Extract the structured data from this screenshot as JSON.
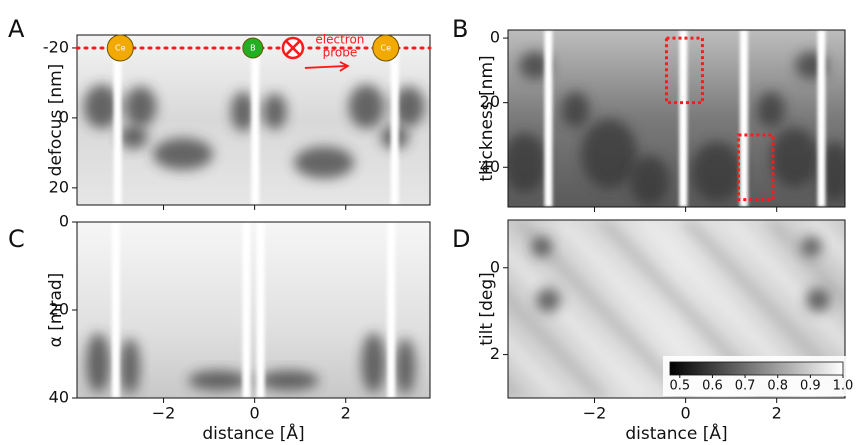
{
  "chart_data": [
    {
      "type": "heatmap",
      "panel_label": "A",
      "ylabel": "defocus [nm]",
      "xlim": [
        -3.9,
        3.85
      ],
      "ylim": [
        -23.7,
        24.9
      ],
      "y_inverted": true,
      "xticks": [
        -2,
        0,
        2
      ],
      "xticklabels": false,
      "yticks": [
        -20,
        0,
        20
      ],
      "reference_line": {
        "y": -20,
        "color": "#ff1a1a"
      },
      "atoms": [
        {
          "label": "Ce",
          "x": -2.95,
          "color": "#f2a900"
        },
        {
          "label": "B",
          "x": -0.04,
          "color": "#22b022"
        },
        {
          "label": "Ce",
          "x": 2.88,
          "color": "#f2a900"
        }
      ],
      "probe": {
        "x": 0.84,
        "label": [
          "electron",
          "probe"
        ],
        "color": "#ff1a1a"
      }
    },
    {
      "type": "heatmap",
      "panel_label": "B",
      "ylabel": "thickness [nm]",
      "xlim": [
        -3.9,
        3.5
      ],
      "ylim": [
        -2.5,
        52.3
      ],
      "y_inverted": true,
      "xticks": [
        -2,
        0,
        2
      ],
      "xticklabels": false,
      "yticks": [
        0,
        20,
        40
      ],
      "highlight_boxes": [
        {
          "x": [
            -0.42,
            0.37
          ],
          "y": [
            0,
            20
          ]
        },
        {
          "x": [
            1.16,
            1.92
          ],
          "y": [
            30,
            50
          ]
        }
      ],
      "box_color": "#ff1a1a"
    },
    {
      "type": "heatmap",
      "panel_label": "C",
      "ylabel": "α [mrad]",
      "xlabel": "distance [Å]",
      "xlim": [
        -3.9,
        3.85
      ],
      "ylim": [
        0,
        40
      ],
      "y_inverted": true,
      "xticks": [
        {
          "value": -2,
          "label": "−2"
        },
        0,
        2
      ],
      "xticklabels": true,
      "yticks": [
        0,
        20,
        40
      ]
    },
    {
      "type": "heatmap",
      "panel_label": "D",
      "ylabel": "tilt [deg]",
      "xlabel": "distance [Å]",
      "xlim": [
        -3.9,
        3.5
      ],
      "ylim": [
        -1.1,
        3.0
      ],
      "y_inverted": true,
      "xticks": [
        {
          "value": -2,
          "label": "−2"
        },
        0,
        2
      ],
      "xticklabels": true,
      "yticks": [
        0,
        2
      ],
      "colorbar": {
        "lim": [
          0.47,
          1.0
        ],
        "ticks": [
          0.5,
          0.6,
          0.7,
          0.8,
          0.9,
          {
            "value": 1.0,
            "label": "1.0"
          }
        ]
      }
    }
  ]
}
